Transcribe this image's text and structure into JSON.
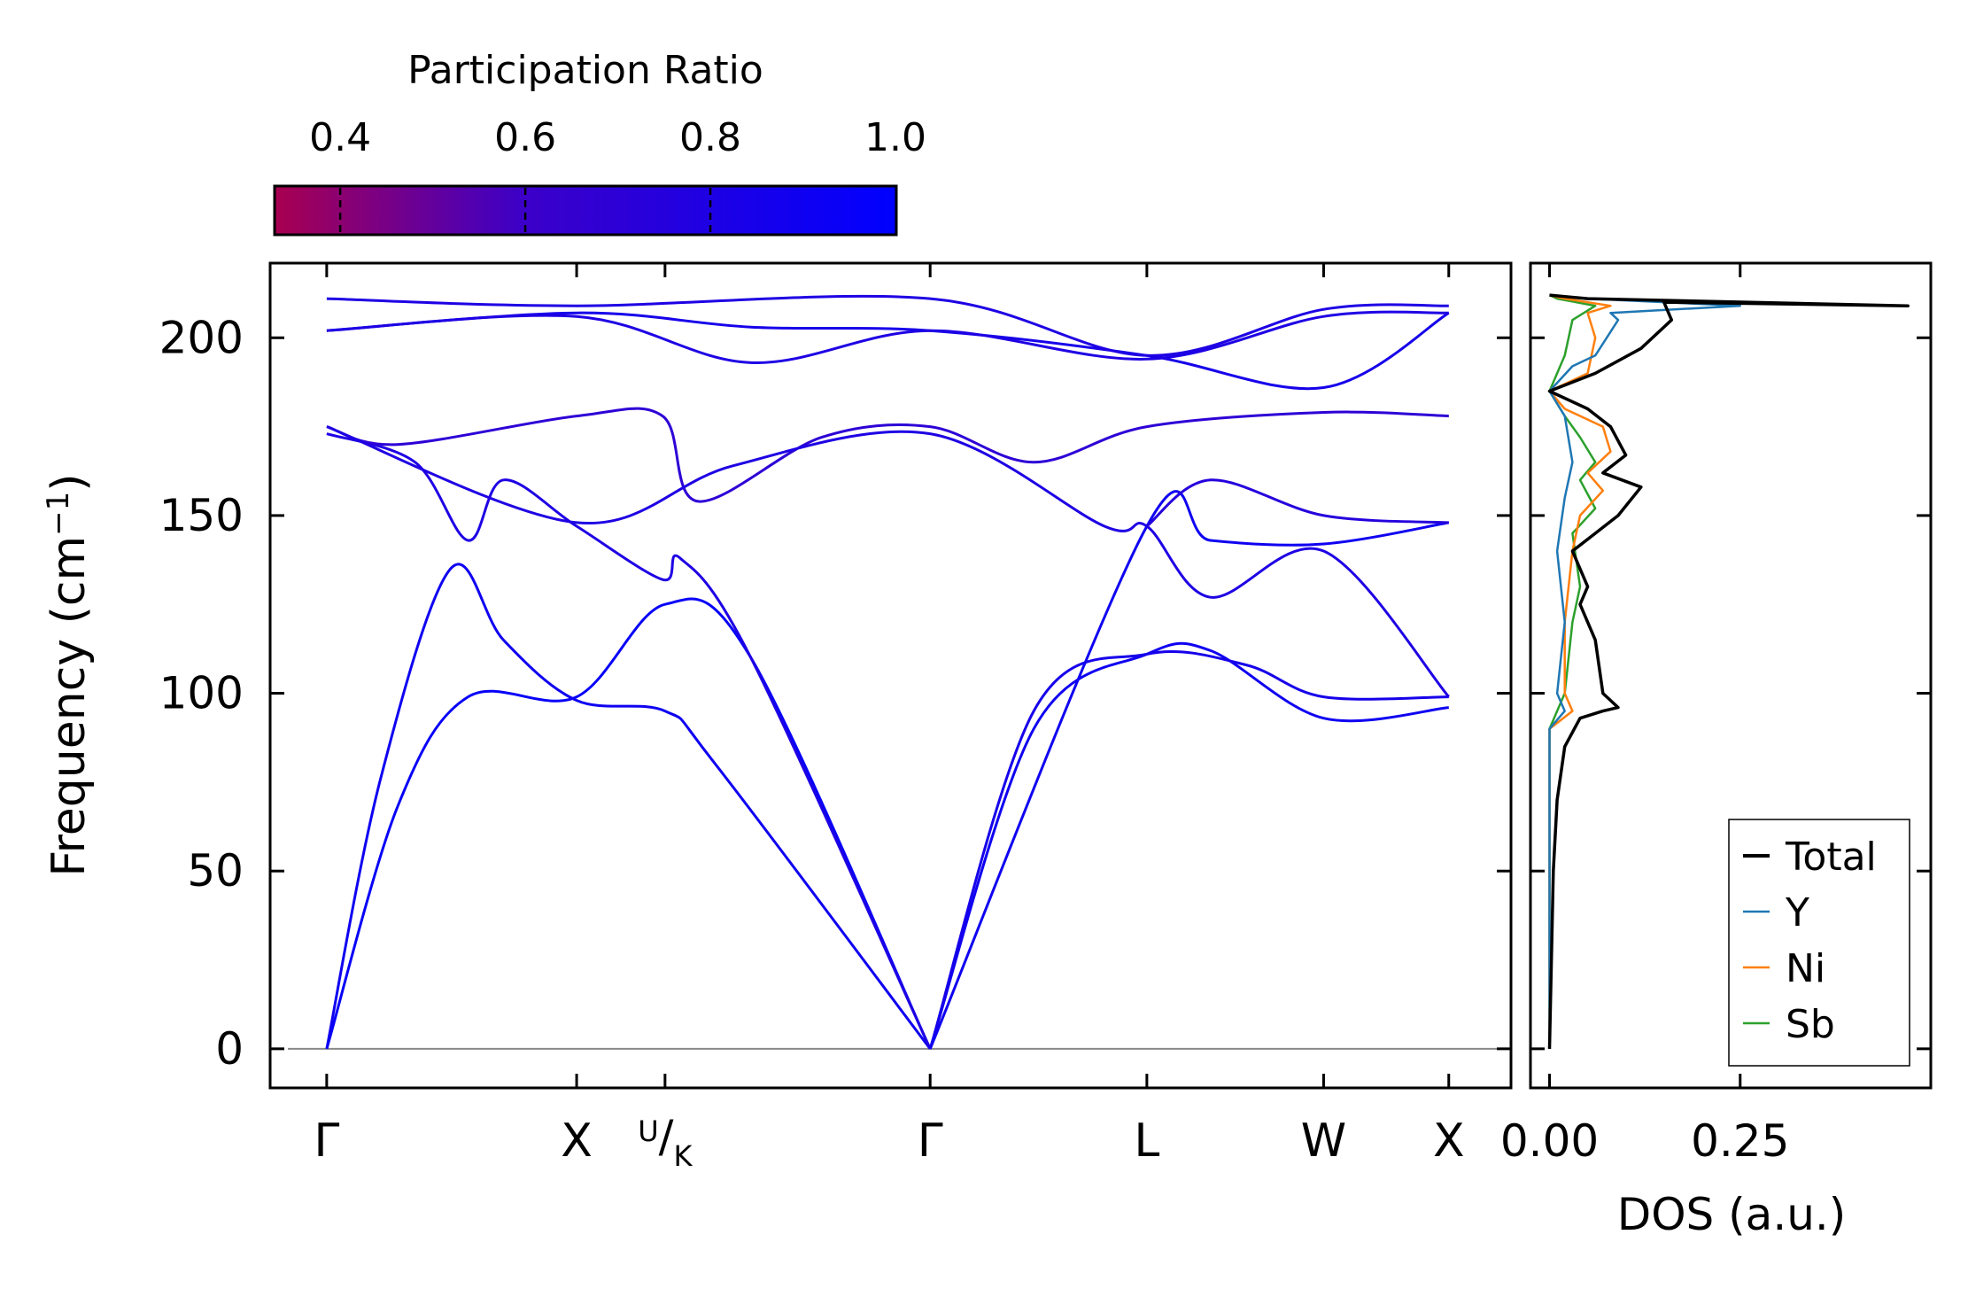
{
  "chart_data": [
    {
      "type": "line",
      "subtype": "phonon-band-structure",
      "ylabel": "Frequency (cm",
      "ylabel_sup": "−1",
      "ylabel_close": ")",
      "ylim": [
        -11,
        221
      ],
      "yticks": [
        0,
        50,
        100,
        150,
        200
      ],
      "ytick_labels": [
        "0",
        "50",
        "100",
        "150",
        "200"
      ],
      "xlim": [
        -0.16,
        3.35
      ],
      "kpoints": [
        {
          "label": "Γ",
          "x": 0.0
        },
        {
          "label": "X",
          "x": 0.707
        },
        {
          "label": "U",
          "label2": "K",
          "x": 0.957,
          "split": true
        },
        {
          "label": "Γ",
          "x": 1.707
        },
        {
          "label": "L",
          "x": 2.32
        },
        {
          "label": "W",
          "x": 2.82
        },
        {
          "label": "X",
          "x": 3.174
        }
      ],
      "zero_line": 0,
      "colorbar": {
        "label": "Participation Ratio",
        "range": [
          0.33,
          1.0
        ],
        "ticks": [
          0.4,
          0.6,
          0.8,
          1.0
        ],
        "tick_labels": [
          "0.4",
          "0.6",
          "0.8",
          "1.0"
        ],
        "color_low": "#a80050",
        "color_mid": "#3c00c8",
        "color_high": "#0000ff"
      },
      "bands": [
        {
          "points": [
            [
              0,
              0
            ],
            [
              0.2,
              68
            ],
            [
              0.4,
              99
            ],
            [
              0.707,
              99
            ],
            [
              0.957,
              125
            ],
            [
              1.2,
              110
            ],
            [
              1.707,
              0
            ]
          ],
          "pr": 0.95
        },
        {
          "points": [
            [
              0,
              0
            ],
            [
              0.15,
              75
            ],
            [
              0.35,
              135
            ],
            [
              0.5,
              115
            ],
            [
              0.707,
              98
            ],
            [
              0.957,
              95
            ],
            [
              1.1,
              80
            ],
            [
              1.707,
              0
            ]
          ],
          "pr": 0.9
        },
        {
          "points": [
            [
              0,
              173
            ],
            [
              0.25,
              165
            ],
            [
              0.4,
              143
            ],
            [
              0.5,
              160
            ],
            [
              0.707,
              147
            ],
            [
              0.95,
              132
            ],
            [
              1.0,
              138
            ],
            [
              1.2,
              110
            ],
            [
              1.707,
              0
            ]
          ],
          "pr": 0.8
        },
        {
          "points": [
            [
              0,
              175
            ],
            [
              0.2,
              170
            ],
            [
              0.707,
              178
            ],
            [
              0.95,
              178
            ],
            [
              1.05,
              154
            ],
            [
              1.4,
              172
            ],
            [
              1.707,
              175
            ],
            [
              2.0,
              165
            ],
            [
              2.32,
              175
            ],
            [
              2.82,
              179
            ],
            [
              3.174,
              178
            ]
          ],
          "pr": 0.7
        },
        {
          "points": [
            [
              0,
              175
            ],
            [
              0.707,
              148
            ],
            [
              1.15,
              164
            ],
            [
              1.707,
              173
            ],
            [
              2.2,
              147
            ],
            [
              2.32,
              147
            ],
            [
              2.5,
              127
            ],
            [
              2.82,
              140
            ],
            [
              3.174,
              99
            ]
          ],
          "pr": 0.8
        },
        {
          "points": [
            [
              1.707,
              0
            ],
            [
              2.0,
              90
            ],
            [
              2.32,
              111
            ],
            [
              2.5,
              112
            ],
            [
              2.82,
              93
            ],
            [
              3.174,
              96
            ]
          ],
          "pr": 0.9
        },
        {
          "points": [
            [
              1.707,
              0
            ],
            [
              2.0,
              95
            ],
            [
              2.32,
              111
            ],
            [
              2.6,
              108
            ],
            [
              2.82,
              99
            ],
            [
              3.174,
              99
            ]
          ],
          "pr": 0.85
        },
        {
          "points": [
            [
              1.707,
              0
            ],
            [
              2.32,
              147
            ],
            [
              2.5,
              143
            ],
            [
              2.82,
              142
            ],
            [
              3.174,
              148
            ]
          ],
          "pr": 0.9
        },
        {
          "points": [
            [
              2.32,
              147
            ],
            [
              2.5,
              160
            ],
            [
              2.82,
              150
            ],
            [
              3.174,
              148
            ]
          ],
          "pr": 0.75
        },
        {
          "points": [
            [
              0,
              202
            ],
            [
              0.707,
              207
            ],
            [
              1.2,
              203
            ],
            [
              1.707,
              202
            ],
            [
              2.32,
              195
            ],
            [
              2.82,
              186
            ],
            [
              3.174,
              207
            ]
          ],
          "pr": 0.85
        },
        {
          "points": [
            [
              0,
              211
            ],
            [
              0.707,
              209
            ],
            [
              1.707,
              211
            ],
            [
              2.32,
              195
            ],
            [
              2.82,
              208
            ],
            [
              3.174,
              209
            ]
          ],
          "pr": 0.8
        },
        {
          "points": [
            [
              0,
              202
            ],
            [
              0.707,
              206
            ],
            [
              1.2,
              193
            ],
            [
              1.707,
              202
            ],
            [
              2.32,
              194
            ],
            [
              2.82,
              206
            ],
            [
              3.174,
              207
            ]
          ],
          "pr": 0.8
        }
      ]
    },
    {
      "type": "line",
      "subtype": "density-of-states",
      "xlabel": "DOS (a.u.)",
      "xticks": [
        0.0,
        0.25
      ],
      "xtick_labels": [
        "0.00",
        "0.25"
      ],
      "xlim": [
        -0.025,
        0.5
      ],
      "ylim": [
        -11,
        221
      ],
      "legend_position": "bottom-right",
      "series": [
        {
          "name": "Total",
          "color": "#000000",
          "points": [
            [
              0,
              0
            ],
            [
              0.005,
              50
            ],
            [
              0.01,
              70
            ],
            [
              0.02,
              85
            ],
            [
              0.04,
              93
            ],
            [
              0.07,
              95
            ],
            [
              0.09,
              96
            ],
            [
              0.07,
              100
            ],
            [
              0.06,
              115
            ],
            [
              0.04,
              125
            ],
            [
              0.05,
              130
            ],
            [
              0.03,
              140
            ],
            [
              0.06,
              145
            ],
            [
              0.09,
              150
            ],
            [
              0.12,
              158
            ],
            [
              0.07,
              162
            ],
            [
              0.1,
              167
            ],
            [
              0.08,
              175
            ],
            [
              0.05,
              180
            ],
            [
              0,
              185
            ],
            [
              0.06,
              190
            ],
            [
              0.12,
              197
            ],
            [
              0.16,
              205
            ],
            [
              0.15,
              210
            ],
            [
              0.47,
              209
            ],
            [
              0.05,
              211
            ],
            [
              0,
              212
            ]
          ]
        },
        {
          "name": "Y",
          "color": "#1f77b4",
          "points": [
            [
              0,
              0
            ],
            [
              0,
              90
            ],
            [
              0.02,
              95
            ],
            [
              0.01,
              100
            ],
            [
              0.02,
              120
            ],
            [
              0.01,
              140
            ],
            [
              0.02,
              155
            ],
            [
              0.03,
              165
            ],
            [
              0.02,
              178
            ],
            [
              0,
              185
            ],
            [
              0.03,
              192
            ],
            [
              0.06,
              195
            ],
            [
              0.09,
              205
            ],
            [
              0.08,
              207
            ],
            [
              0.25,
              209
            ],
            [
              0.05,
              211
            ],
            [
              0,
              212
            ]
          ]
        },
        {
          "name": "Ni",
          "color": "#ff7f0e",
          "points": [
            [
              0,
              0
            ],
            [
              0,
              90
            ],
            [
              0.03,
              95
            ],
            [
              0.02,
              100
            ],
            [
              0.02,
              120
            ],
            [
              0.03,
              140
            ],
            [
              0.04,
              150
            ],
            [
              0.07,
              157
            ],
            [
              0.05,
              162
            ],
            [
              0.08,
              168
            ],
            [
              0.07,
              175
            ],
            [
              0.02,
              180
            ],
            [
              0,
              185
            ],
            [
              0.05,
              190
            ],
            [
              0.06,
              200
            ],
            [
              0.05,
              207
            ],
            [
              0.08,
              209
            ],
            [
              0.02,
              211
            ],
            [
              0,
              212
            ]
          ]
        },
        {
          "name": "Sb",
          "color": "#2ca02c",
          "points": [
            [
              0,
              0
            ],
            [
              0,
              90
            ],
            [
              0.01,
              95
            ],
            [
              0.02,
              100
            ],
            [
              0.03,
              120
            ],
            [
              0.04,
              130
            ],
            [
              0.03,
              145
            ],
            [
              0.06,
              152
            ],
            [
              0.04,
              160
            ],
            [
              0.06,
              165
            ],
            [
              0.04,
              172
            ],
            [
              0.02,
              178
            ],
            [
              0,
              185
            ],
            [
              0.02,
              195
            ],
            [
              0.03,
              205
            ],
            [
              0.06,
              209
            ],
            [
              0.01,
              211
            ],
            [
              0,
              212
            ]
          ]
        }
      ]
    }
  ]
}
